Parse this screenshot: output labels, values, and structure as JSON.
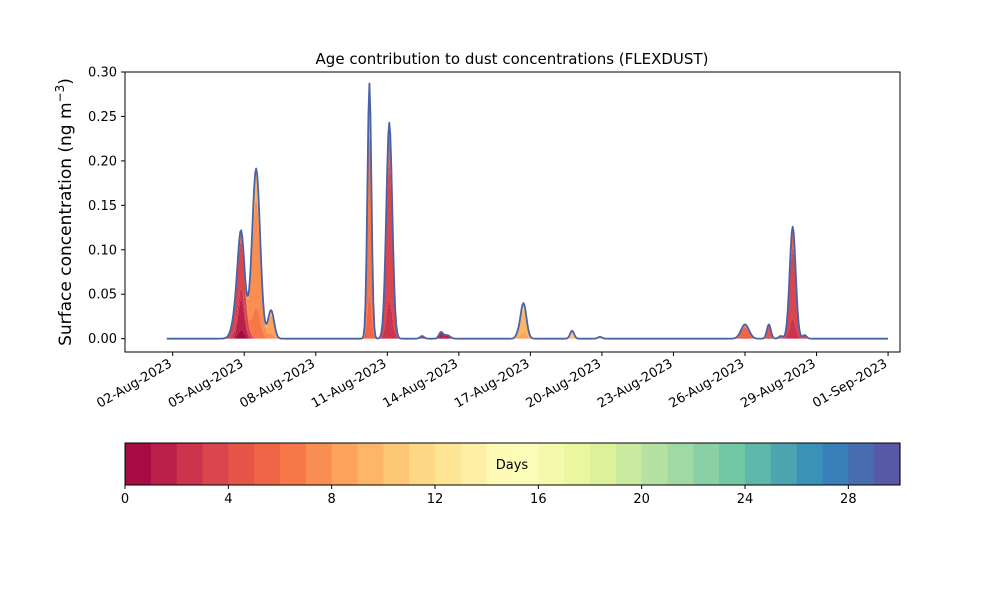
{
  "chart_data": {
    "type": "area",
    "title": "Age contribution to dust concentrations (FLEXDUST)",
    "ylabel_main": "Surface concentration (ng m",
    "ylabel_sup": "−3",
    "ylabel_close": ")",
    "ylim": [
      -0.015,
      0.3
    ],
    "xlim": [
      "2023-07-31T00:00",
      "2023-09-01T12:00"
    ],
    "grid": false,
    "y_ticks": [
      {
        "value": 0.0,
        "label": "0.00"
      },
      {
        "value": 0.05,
        "label": "0.05"
      },
      {
        "value": 0.1,
        "label": "0.10"
      },
      {
        "value": 0.15,
        "label": "0.15"
      },
      {
        "value": 0.2,
        "label": "0.20"
      },
      {
        "value": 0.25,
        "label": "0.25"
      },
      {
        "value": 0.3,
        "label": "0.30"
      }
    ],
    "x_ticks": [
      {
        "date": "2023-08-02",
        "label": "02-Aug-2023"
      },
      {
        "date": "2023-08-05",
        "label": "05-Aug-2023"
      },
      {
        "date": "2023-08-08",
        "label": "08-Aug-2023"
      },
      {
        "date": "2023-08-11",
        "label": "11-Aug-2023"
      },
      {
        "date": "2023-08-14",
        "label": "14-Aug-2023"
      },
      {
        "date": "2023-08-17",
        "label": "17-Aug-2023"
      },
      {
        "date": "2023-08-20",
        "label": "20-Aug-2023"
      },
      {
        "date": "2023-08-23",
        "label": "23-Aug-2023"
      },
      {
        "date": "2023-08-26",
        "label": "26-Aug-2023"
      },
      {
        "date": "2023-08-29",
        "label": "29-Aug-2023"
      },
      {
        "date": "2023-09-01",
        "label": "01-Sep-2023"
      }
    ],
    "series_start": "2023-08-01T18:00",
    "series_end": "2023-09-01T00:00",
    "baseline": 0.0,
    "peaks": [
      {
        "time": "2023-08-04T20:00",
        "total": 0.068,
        "width_h": 5,
        "dominant_age_days": 3
      },
      {
        "time": "2023-08-04T21:00",
        "total": 0.055,
        "width_h": 3,
        "dominant_age_days": 1
      },
      {
        "time": "2023-08-05T12:00",
        "total": 0.191,
        "width_h": 4,
        "dominant_age_days": 7
      },
      {
        "time": "2023-08-06T03:00",
        "total": 0.032,
        "width_h": 3,
        "dominant_age_days": 8
      },
      {
        "time": "2023-08-10T06:00",
        "total": 0.287,
        "width_h": 2,
        "dominant_age_days": 6
      },
      {
        "time": "2023-08-11T02:00",
        "total": 0.243,
        "width_h": 3,
        "dominant_age_days": 3
      },
      {
        "time": "2023-08-12T11:00",
        "total": 0.003,
        "width_h": 2,
        "dominant_age_days": 2
      },
      {
        "time": "2023-08-13T06:00",
        "total": 0.007,
        "width_h": 2,
        "dominant_age_days": 1
      },
      {
        "time": "2023-08-13T12:00",
        "total": 0.004,
        "width_h": 3,
        "dominant_age_days": 1
      },
      {
        "time": "2023-08-16T17:00",
        "total": 0.04,
        "width_h": 3,
        "dominant_age_days": 9
      },
      {
        "time": "2023-08-16T11:00",
        "total": 0.003,
        "width_h": 2,
        "dominant_age_days": 9
      },
      {
        "time": "2023-08-18T18:00",
        "total": 0.009,
        "width_h": 2,
        "dominant_age_days": 10
      },
      {
        "time": "2023-08-19T22:00",
        "total": 0.002,
        "width_h": 2,
        "dominant_age_days": 10
      },
      {
        "time": "2023-08-26T00:00",
        "total": 0.016,
        "width_h": 4,
        "dominant_age_days": 5
      },
      {
        "time": "2023-08-27T00:00",
        "total": 0.016,
        "width_h": 2,
        "dominant_age_days": 4
      },
      {
        "time": "2023-08-27T12:00",
        "total": 0.003,
        "width_h": 2,
        "dominant_age_days": 4
      },
      {
        "time": "2023-08-28T00:00",
        "total": 0.126,
        "width_h": 3,
        "dominant_age_days": 3
      },
      {
        "time": "2023-08-28T12:00",
        "total": 0.004,
        "width_h": 2,
        "dominant_age_days": 3
      }
    ],
    "colorbar": {
      "label": "Days",
      "min": 0,
      "max": 30,
      "bins": 30,
      "ticks": [
        {
          "value": 0,
          "label": "0"
        },
        {
          "value": 4,
          "label": "4"
        },
        {
          "value": 8,
          "label": "8"
        },
        {
          "value": 12,
          "label": "12"
        },
        {
          "value": 16,
          "label": "16"
        },
        {
          "value": 20,
          "label": "20"
        },
        {
          "value": 24,
          "label": "24"
        },
        {
          "value": 28,
          "label": "28"
        }
      ],
      "colormap": "Spectral",
      "colors": [
        "#9e0142",
        "#d53e4f",
        "#f46d43",
        "#fdae61",
        "#fee08b",
        "#ffffbf",
        "#e6f598",
        "#abdda4",
        "#66c2a5",
        "#3288bd",
        "#5e4fa2"
      ]
    },
    "outline_color": "#4a62a6"
  }
}
